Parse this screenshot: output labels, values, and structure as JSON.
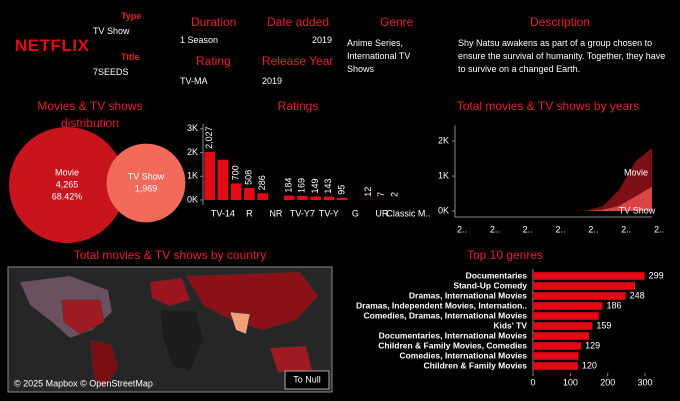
{
  "info": {
    "logo": "NETFLIX",
    "type_label": "Type",
    "type_value": "TV Show",
    "title_label": "Title",
    "title_value": "7SEEDS",
    "duration_label": "Duration",
    "duration_value": "1 Season",
    "date_label": "Date added",
    "date_value": "2019",
    "genre_label": "Genre",
    "genre_value": "Anime Series, International TV Shows",
    "description_label": "Description",
    "description_value": "Shy Natsu awakens as part of a group chosen to ensure the survival of humanity. Together, they have to survive on a changed Earth.",
    "rating_label": "Rating",
    "rating_value": "TV-MA",
    "release_label": "Release Year",
    "release_value": "2019"
  },
  "chart_data": [
    {
      "type": "bubble",
      "title": "Movies & TV shows distribution",
      "categories": [
        "Movie",
        "TV Show"
      ],
      "values": [
        4265,
        1969
      ],
      "value_labels": [
        "4,265",
        "1,969"
      ],
      "shares": [
        68.42,
        null
      ],
      "share_labels": [
        "68.42%",
        null
      ],
      "colors": [
        "#c8141d",
        "#f26a5a"
      ]
    },
    {
      "type": "bar",
      "title": "Ratings",
      "color": "#e50914",
      "categories": [
        null,
        "TV-14",
        null,
        "R",
        null,
        "NR",
        null,
        "TV-Y7",
        null,
        "TV-Y",
        null,
        "G",
        null,
        "UR",
        null,
        "Classic M.."
      ],
      "values": [
        2027,
        1698,
        700,
        508,
        286,
        null,
        184,
        169,
        149,
        143,
        95,
        null,
        12,
        7,
        2,
        null
      ],
      "value_labels": [
        "2,027",
        null,
        "700",
        "508",
        "286",
        null,
        "184",
        "169",
        "149",
        "143",
        "95",
        null,
        "12",
        "7",
        "2",
        null
      ],
      "ylim": [
        0,
        3200
      ],
      "yticks": [
        {
          "value": 0,
          "label": "0K"
        },
        {
          "value": 1000,
          "label": "1K"
        },
        {
          "value": 2000,
          "label": "2K"
        },
        {
          "value": 3000,
          "label": "3K"
        }
      ]
    },
    {
      "type": "area",
      "title": "Total movies & TV shows by years",
      "stacked": true,
      "categories": [
        "2..",
        null,
        "2..",
        null,
        "2..",
        null,
        "2..",
        null,
        "2..",
        null,
        "2..",
        null,
        "2.."
      ],
      "series": [
        {
          "name": "Movie",
          "color": "#7d0f16",
          "values": [
            0,
            0,
            0,
            0,
            0,
            0,
            0,
            0,
            10,
            100,
            450,
            1000,
            1100
          ]
        },
        {
          "name": "TV Show",
          "color": "#d94545",
          "values": [
            0,
            0,
            0,
            0,
            0,
            0,
            0,
            0,
            5,
            40,
            150,
            420,
            700
          ]
        }
      ],
      "ylim": [
        0,
        2300
      ],
      "yticks": [
        {
          "value": 0,
          "label": "0K"
        },
        {
          "value": 1000,
          "label": "1K"
        },
        {
          "value": 2000,
          "label": "2K"
        }
      ]
    },
    {
      "type": "map",
      "title": "Total movies & TV shows by country",
      "attribution": "© 2025 Mapbox © OpenStreetMap",
      "button": "To Null"
    },
    {
      "type": "hbar",
      "title": "Top 10 genres",
      "color": "#e50914",
      "categories": [
        "Documentaries",
        "Stand-Up Comedy",
        "Dramas, International Movies",
        "Dramas, Independent Movies, Internation..",
        "Comedies, Dramas, International Movies",
        "Kids' TV",
        "Documentaries, International Movies",
        "Children & Family Movies, Comedies",
        "Comedies, International Movies",
        "Children & Family Movies"
      ],
      "values": [
        299,
        273,
        248,
        186,
        176,
        159,
        150,
        129,
        122,
        120
      ],
      "value_labels": [
        "299",
        null,
        "248",
        "186",
        null,
        "159",
        null,
        "129",
        null,
        "120"
      ],
      "xlim": [
        0,
        340
      ],
      "xticks": [
        0,
        100,
        200,
        300
      ]
    }
  ]
}
